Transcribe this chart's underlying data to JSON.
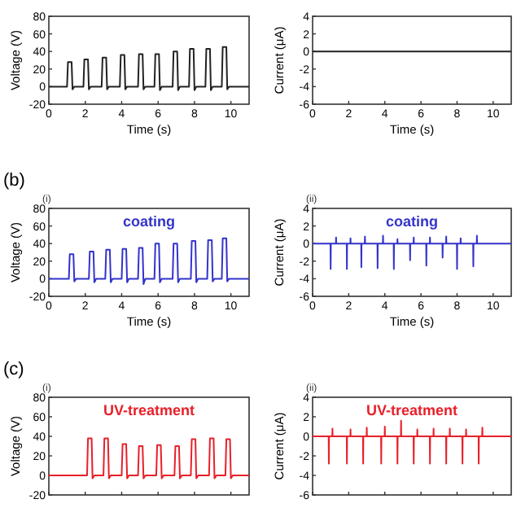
{
  "chart_data": [
    {
      "type": "line",
      "xlabel": "Time (s)",
      "ylabel": "Voltage (V)",
      "x": [
        0,
        1.0,
        1.05,
        1.25,
        1.3,
        1.4,
        1.9,
        1.95,
        2.15,
        2.2,
        2.3,
        2.9,
        2.95,
        3.15,
        3.2,
        3.3,
        3.9,
        3.95,
        4.15,
        4.2,
        4.3,
        4.9,
        4.95,
        5.15,
        5.2,
        5.3,
        5.8,
        5.85,
        6.05,
        6.1,
        6.2,
        6.8,
        6.85,
        7.05,
        7.1,
        7.2,
        7.7,
        7.75,
        7.95,
        8.0,
        8.1,
        8.6,
        8.65,
        8.85,
        8.9,
        9.0,
        9.5,
        9.55,
        9.75,
        9.8,
        9.9,
        11
      ],
      "series": [
        {
          "color": "#222222",
          "values": [
            0,
            0,
            28,
            28,
            -3,
            0,
            0,
            31,
            31,
            -3,
            0,
            0,
            33,
            33,
            -3,
            0,
            0,
            36,
            36,
            -3,
            0,
            0,
            37,
            37,
            -3,
            0,
            0,
            37,
            37,
            -4,
            0,
            0,
            40,
            40,
            -4,
            0,
            0,
            43,
            43,
            -4,
            0,
            0,
            43,
            43,
            -4,
            0,
            0,
            45,
            45,
            -3,
            0,
            0
          ]
        }
      ],
      "xlim": [
        0,
        11
      ],
      "xticks": [
        0,
        2,
        4,
        6,
        8,
        10
      ],
      "ylim": [
        -20,
        80
      ],
      "yticks": [
        -20,
        0,
        20,
        40,
        60,
        80
      ]
    },
    {
      "type": "line",
      "xlabel": "Time (s)",
      "ylabel": "Current (μA)",
      "x": [
        0,
        11
      ],
      "series": [
        {
          "color": "#222222",
          "values": [
            0,
            0
          ]
        }
      ],
      "xlim": [
        0,
        11
      ],
      "xticks": [
        0,
        2,
        4,
        6,
        8,
        10
      ],
      "ylim": [
        -6,
        4
      ],
      "yticks": [
        -6,
        -4,
        -2,
        0,
        2,
        4
      ]
    },
    {
      "type": "line",
      "title": "coating",
      "subtitle": "(i)",
      "annotations": [
        "(b)"
      ],
      "xlabel": "Time (s)",
      "ylabel": "Voltage (V)",
      "x": [
        0,
        1.1,
        1.15,
        1.35,
        1.4,
        1.5,
        2.2,
        2.25,
        2.45,
        2.5,
        2.6,
        3.1,
        3.15,
        3.35,
        3.4,
        3.5,
        4.0,
        4.05,
        4.25,
        4.3,
        4.4,
        4.9,
        4.95,
        5.15,
        5.2,
        5.3,
        5.8,
        5.85,
        6.05,
        6.1,
        6.2,
        6.8,
        6.85,
        7.05,
        7.1,
        7.2,
        7.8,
        7.85,
        8.05,
        8.1,
        8.2,
        8.7,
        8.75,
        8.95,
        9.0,
        9.1,
        9.5,
        9.55,
        9.75,
        9.8,
        9.9,
        11
      ],
      "series": [
        {
          "color": "#3333cc",
          "values": [
            0,
            0,
            28,
            28,
            -3,
            0,
            0,
            31,
            31,
            -4,
            0,
            0,
            33,
            33,
            -4,
            0,
            0,
            34,
            34,
            -4,
            0,
            0,
            35,
            35,
            -6,
            0,
            0,
            40,
            40,
            -4,
            0,
            0,
            40,
            40,
            -4,
            0,
            0,
            43,
            43,
            -4,
            0,
            0,
            44,
            44,
            -3,
            0,
            0,
            46,
            46,
            -3,
            0,
            0
          ]
        }
      ],
      "xlim": [
        0,
        11
      ],
      "xticks": [
        0,
        2,
        4,
        6,
        8,
        10
      ],
      "ylim": [
        -20,
        80
      ],
      "yticks": [
        -20,
        0,
        20,
        40,
        60,
        80
      ]
    },
    {
      "type": "line",
      "title": "coating",
      "subtitle": "(ii)",
      "xlabel": "Time (s)",
      "ylabel": "Current (μA)",
      "x": [
        0,
        0.99,
        1.0,
        1.01,
        1.29,
        1.3,
        1.31,
        1.89,
        1.9,
        1.91,
        2.09,
        2.1,
        2.11,
        2.69,
        2.7,
        2.71,
        2.89,
        2.9,
        2.91,
        3.59,
        3.6,
        3.61,
        3.89,
        3.9,
        3.91,
        4.49,
        4.5,
        4.51,
        4.69,
        4.7,
        4.71,
        5.39,
        5.4,
        5.41,
        5.59,
        5.6,
        5.61,
        6.29,
        6.3,
        6.31,
        6.49,
        6.5,
        6.51,
        7.19,
        7.2,
        7.21,
        7.39,
        7.4,
        7.41,
        7.99,
        8.0,
        8.01,
        8.19,
        8.2,
        8.21,
        8.89,
        8.9,
        8.91,
        9.09,
        9.1,
        9.11,
        11
      ],
      "series": [
        {
          "color": "#3333cc",
          "values": [
            0,
            0,
            -2.9,
            0,
            0,
            0.7,
            0,
            0,
            -2.9,
            0,
            0,
            0.6,
            0,
            0,
            -2.7,
            0,
            0,
            0.8,
            0,
            0,
            -2.8,
            0,
            0,
            0.9,
            0,
            0,
            -2.9,
            0,
            0,
            0.5,
            0,
            0,
            -1.9,
            0,
            0,
            0.7,
            0,
            0,
            -2.5,
            0,
            0,
            0.7,
            0,
            0,
            -1.6,
            0,
            0,
            0.8,
            0,
            0,
            -2.9,
            0,
            0,
            0.6,
            0,
            0,
            -2.6,
            0,
            0,
            0.9,
            0,
            0
          ]
        }
      ],
      "xlim": [
        0,
        11
      ],
      "xticks": [
        0,
        2,
        4,
        6,
        8,
        10
      ],
      "ylim": [
        -6,
        4
      ],
      "yticks": [
        -6,
        -4,
        -2,
        0,
        2,
        4
      ]
    },
    {
      "type": "line",
      "title": "UV-treatment",
      "subtitle": "(i)",
      "annotations": [
        "(c)"
      ],
      "ylabel": "Voltage (V)",
      "tick_labels": "y",
      "x": [
        0,
        2.1,
        2.15,
        2.35,
        2.4,
        2.5,
        3.0,
        3.05,
        3.25,
        3.3,
        3.4,
        4.0,
        4.05,
        4.25,
        4.3,
        4.4,
        4.9,
        4.95,
        5.15,
        5.2,
        5.3,
        5.9,
        5.95,
        6.15,
        6.2,
        6.3,
        6.9,
        6.95,
        7.15,
        7.2,
        7.3,
        7.8,
        7.85,
        8.05,
        8.1,
        8.2,
        8.8,
        8.85,
        9.05,
        9.1,
        9.2,
        9.7,
        9.75,
        9.95,
        10.0,
        10.1,
        11
      ],
      "series": [
        {
          "color": "#e8202a",
          "values": [
            0,
            0,
            38,
            38,
            -3,
            0,
            0,
            38,
            38,
            -3,
            0,
            0,
            32,
            32,
            -3,
            0,
            0,
            30,
            30,
            -3,
            0,
            0,
            31,
            31,
            -3,
            0,
            0,
            30,
            30,
            -3,
            0,
            0,
            37,
            37,
            -3,
            0,
            0,
            38,
            38,
            -3,
            0,
            0,
            37,
            37,
            -3,
            0,
            0
          ]
        }
      ],
      "xlim": [
        0,
        11
      ],
      "xticks": [
        0,
        2,
        4,
        6,
        8,
        10
      ],
      "ylim": [
        -20,
        80
      ],
      "yticks": [
        -20,
        0,
        20,
        40,
        60,
        80
      ]
    },
    {
      "type": "line",
      "title": "UV-treatment",
      "subtitle": "(ii)",
      "ylabel": "Current (μA)",
      "tick_labels": "y",
      "x": [
        0,
        0.89,
        0.9,
        0.91,
        1.09,
        1.1,
        1.11,
        1.89,
        1.9,
        1.91,
        2.09,
        2.1,
        2.11,
        2.79,
        2.8,
        2.81,
        2.99,
        3.0,
        3.01,
        3.79,
        3.8,
        3.81,
        3.99,
        4.0,
        4.01,
        4.69,
        4.7,
        4.71,
        4.89,
        4.9,
        4.91,
        5.59,
        5.6,
        5.61,
        5.79,
        5.8,
        5.81,
        6.49,
        6.5,
        6.51,
        6.69,
        6.7,
        6.71,
        7.39,
        7.4,
        7.41,
        7.59,
        7.6,
        7.61,
        8.29,
        8.3,
        8.31,
        8.49,
        8.5,
        8.51,
        9.19,
        9.2,
        9.21,
        9.39,
        9.4,
        9.41,
        11
      ],
      "series": [
        {
          "color": "#e8202a",
          "values": [
            0,
            0,
            -2.8,
            0,
            0,
            0.8,
            0,
            0,
            -2.8,
            0,
            0,
            0.7,
            0,
            0,
            -2.8,
            0,
            0,
            0.9,
            0,
            0,
            -2.8,
            0,
            0,
            1.0,
            0,
            0,
            -2.8,
            0,
            0,
            1.6,
            0,
            0,
            -2.8,
            0,
            0,
            0.7,
            0,
            0,
            -2.8,
            0,
            0,
            0.8,
            0,
            0,
            -2.8,
            0,
            0,
            0.8,
            0,
            0,
            -2.8,
            0,
            0,
            0.7,
            0,
            0,
            -2.8,
            0,
            0,
            0.9,
            0,
            0
          ]
        }
      ],
      "xlim": [
        0,
        11
      ],
      "xticks": [
        0,
        2,
        4,
        6,
        8,
        10
      ],
      "ylim": [
        -6,
        4
      ],
      "yticks": [
        -6,
        -4,
        -2,
        0,
        2,
        4
      ]
    }
  ]
}
